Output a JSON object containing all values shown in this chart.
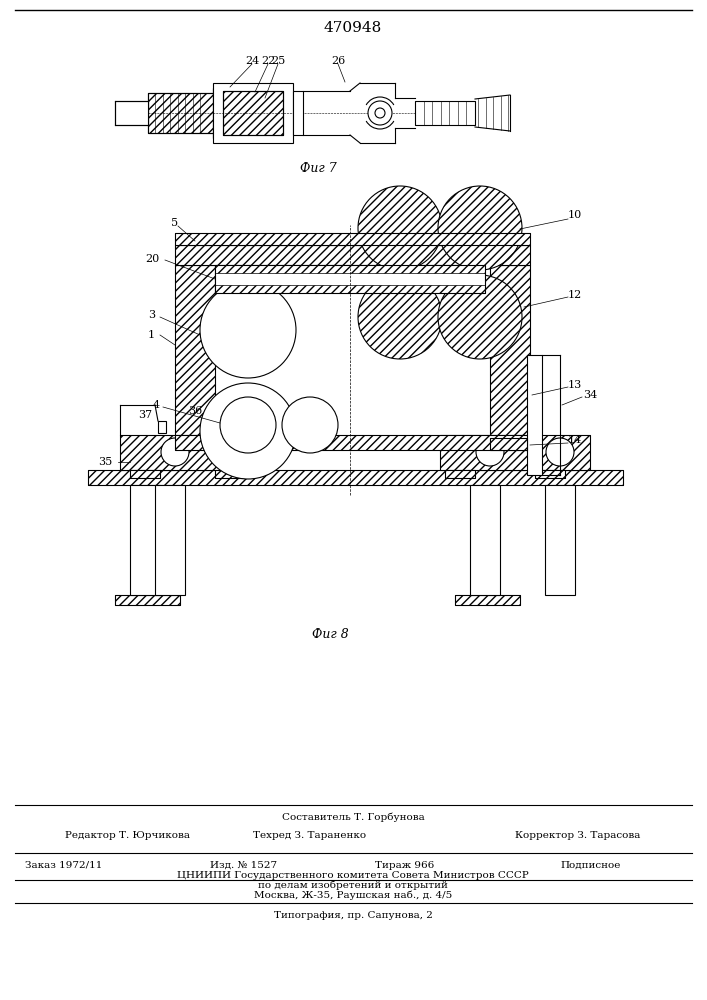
{
  "patent_number": "470948",
  "fig7_label": "Фиг 7",
  "fig8_label": "Фиг 8",
  "fig7_numbers": [
    "24",
    "22",
    "25",
    "26"
  ],
  "footer_line1": "Составитель Т. Горбунова",
  "footer_line2_left": "Редактор Т. Юрчикова",
  "footer_line2_mid": "Техред З. Тараненко",
  "footer_line2_right": "Корректор З. Тарасова",
  "footer_line3_col1": "Заказ 1972/11",
  "footer_line3_col2": "Изд. № 1527",
  "footer_line3_col3": "Тираж 966",
  "footer_line3_col4": "Подписное",
  "footer_line4": "ЦНИИПИ Государственного комитета Совета Министров СССР",
  "footer_line5": "по делам изобретений и открытий",
  "footer_line6": "Москва, Ж-35, Раушская наб., д. 4/5",
  "footer_line7": "Типография, пр. Сапунова, 2",
  "bg_color": "#ffffff",
  "line_color": "#000000"
}
